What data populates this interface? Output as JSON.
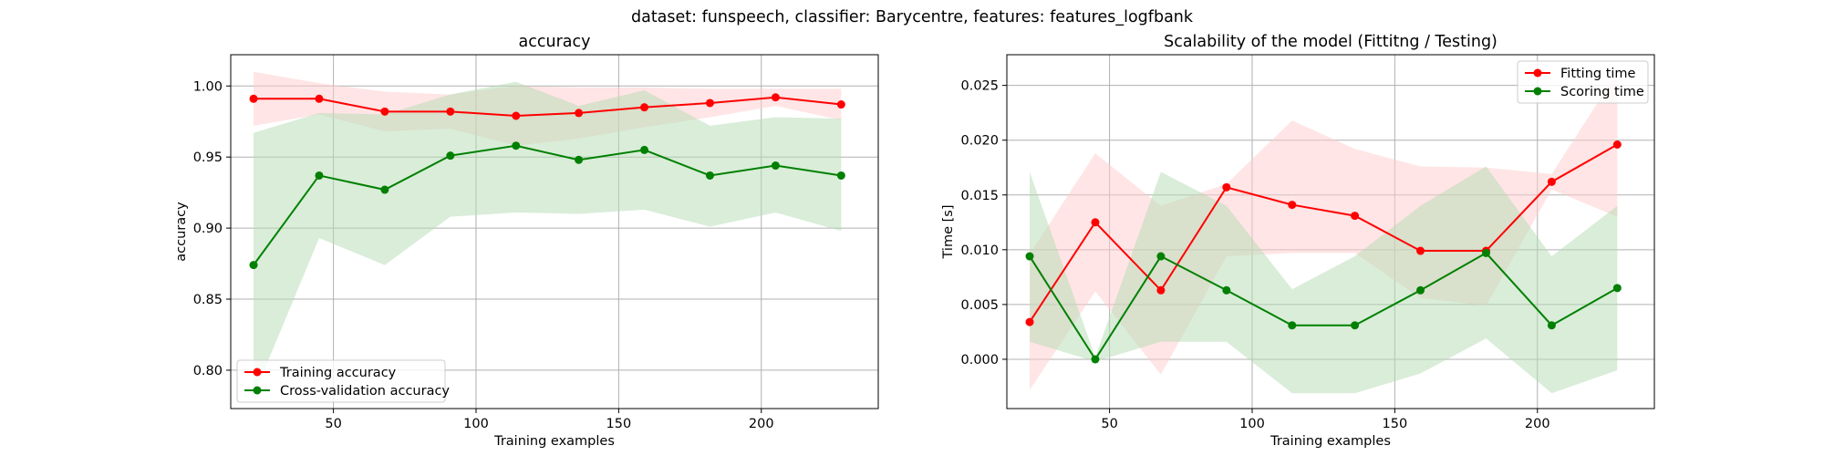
{
  "figure": {
    "suptitle": "dataset: funspeech, classifier: Barycentre, features: features_logfbank"
  },
  "chart_data": [
    {
      "type": "line",
      "title": "accuracy",
      "xlabel": "Training examples",
      "ylabel": "accuracy",
      "xlim": [
        14,
        241
      ],
      "ylim": [
        0.773,
        1.022
      ],
      "xticks": [
        50,
        100,
        150,
        200
      ],
      "xtick_labels": [
        "50",
        "100",
        "150",
        "200"
      ],
      "yticks": [
        0.8,
        0.85,
        0.9,
        0.95,
        1.0
      ],
      "ytick_labels": [
        "0.80",
        "0.85",
        "0.90",
        "0.95",
        "1.00"
      ],
      "grid": true,
      "legend_position": "lower-left",
      "x": [
        22,
        45,
        68,
        91,
        114,
        136,
        159,
        182,
        205,
        228
      ],
      "series": [
        {
          "name": "Training accuracy",
          "color": "#ff0000",
          "band_color": "#ffcccc",
          "values": [
            0.991,
            0.991,
            0.982,
            0.982,
            0.979,
            0.981,
            0.985,
            0.988,
            0.992,
            0.987
          ],
          "lower": [
            0.972,
            0.98,
            0.968,
            0.97,
            0.958,
            0.963,
            0.971,
            0.978,
            0.986,
            0.976
          ],
          "upper": [
            1.01,
            1.002,
            0.996,
            0.994,
            1.0,
            0.999,
            0.999,
            0.998,
            0.998,
            0.998
          ]
        },
        {
          "name": "Cross-validation accuracy",
          "color": "#008000",
          "band_color": "#b3dbb3",
          "values": [
            0.874,
            0.937,
            0.927,
            0.951,
            0.958,
            0.948,
            0.955,
            0.937,
            0.944,
            0.937
          ],
          "lower": [
            0.782,
            0.893,
            0.874,
            0.908,
            0.911,
            0.91,
            0.913,
            0.901,
            0.911,
            0.898
          ],
          "upper": [
            0.967,
            0.981,
            0.98,
            0.994,
            1.003,
            0.986,
            0.997,
            0.972,
            0.978,
            0.977
          ]
        }
      ]
    },
    {
      "type": "line",
      "title": "Scalability of the model (Fittitng / Testing)",
      "xlabel": "Training examples",
      "ylabel": "Time [s]",
      "xlim": [
        14,
        241
      ],
      "ylim": [
        -0.0045,
        0.0278
      ],
      "xticks": [
        50,
        100,
        150,
        200
      ],
      "xtick_labels": [
        "50",
        "100",
        "150",
        "200"
      ],
      "yticks": [
        0.0,
        0.005,
        0.01,
        0.015,
        0.02,
        0.025
      ],
      "ytick_labels": [
        "0.000",
        "0.005",
        "0.010",
        "0.015",
        "0.020",
        "0.025"
      ],
      "grid": true,
      "legend_position": "upper-right",
      "x": [
        22,
        45,
        68,
        91,
        114,
        136,
        159,
        182,
        205,
        228
      ],
      "series": [
        {
          "name": "Fitting time",
          "color": "#ff0000",
          "band_color": "#ffcccc",
          "values": [
            0.0034,
            0.0125,
            0.0063,
            0.0157,
            0.0141,
            0.0131,
            0.0099,
            0.0099,
            0.0162,
            0.0196
          ],
          "lower": [
            -0.0028,
            0.0062,
            -0.0014,
            0.0094,
            0.0097,
            0.0097,
            0.0056,
            0.0049,
            0.0155,
            0.013
          ],
          "upper": [
            0.0096,
            0.0188,
            0.014,
            0.016,
            0.0218,
            0.0192,
            0.0176,
            0.0175,
            0.0169,
            0.0262
          ]
        },
        {
          "name": "Scoring time",
          "color": "#008000",
          "band_color": "#b3dbb3",
          "values": [
            0.0094,
            0.0,
            0.0094,
            0.0063,
            0.0031,
            0.0031,
            0.0063,
            0.0097,
            0.0031,
            0.0065
          ],
          "lower": [
            0.0016,
            -0.0002,
            0.0016,
            0.0016,
            -0.0031,
            -0.0031,
            -0.0013,
            0.0019,
            -0.0031,
            -0.001
          ],
          "upper": [
            0.0171,
            0.0002,
            0.0171,
            0.014,
            0.0064,
            0.0094,
            0.014,
            0.0176,
            0.0094,
            0.014
          ]
        }
      ]
    }
  ]
}
